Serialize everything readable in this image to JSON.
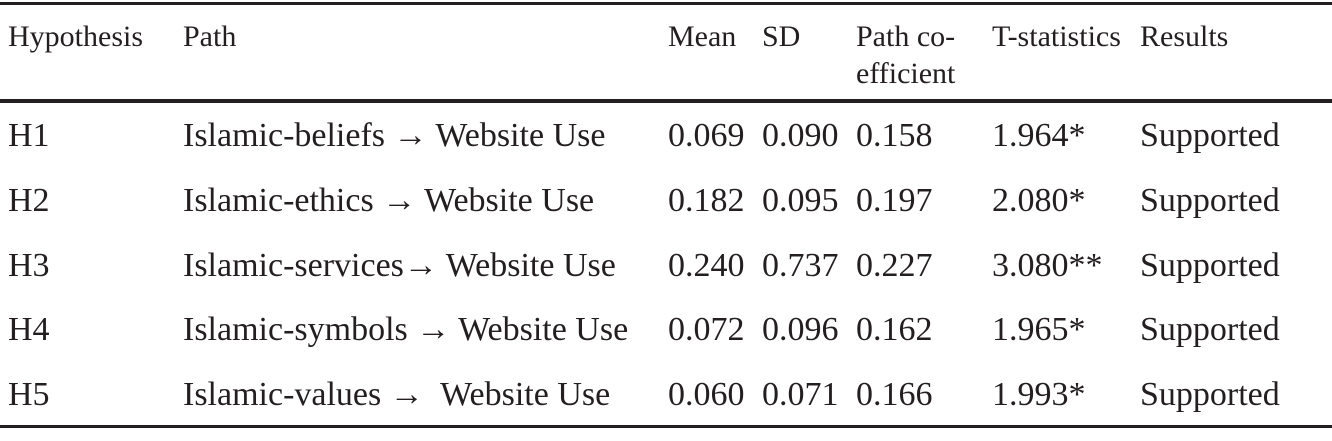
{
  "table": {
    "header": [
      "Hypothesis",
      "Path",
      "Mean",
      "SD",
      "Path co-\nefficient",
      "T-statistics",
      "Results"
    ],
    "rows": [
      [
        "H1",
        "Islamic-beliefs → Website Use",
        "0.069",
        "0.090",
        "0.158",
        "1.964*",
        "Supported"
      ],
      [
        "H2",
        "Islamic-ethics → Website Use",
        "0.182",
        "0.095",
        "0.197",
        "2.080*",
        "Supported"
      ],
      [
        "H3",
        "Islamic-services→ Website Use",
        "0.240",
        "0.737",
        "0.227",
        "3.080**",
        "Supported"
      ],
      [
        "H4",
        "Islamic-symbols → Website Use",
        "0.072",
        "0.096",
        "0.162",
        "1.965*",
        "Supported"
      ],
      [
        "H5",
        "Islamic-values →  Website Use",
        "0.060",
        "0.071",
        "0.166",
        "1.993*",
        "Supported"
      ]
    ]
  }
}
